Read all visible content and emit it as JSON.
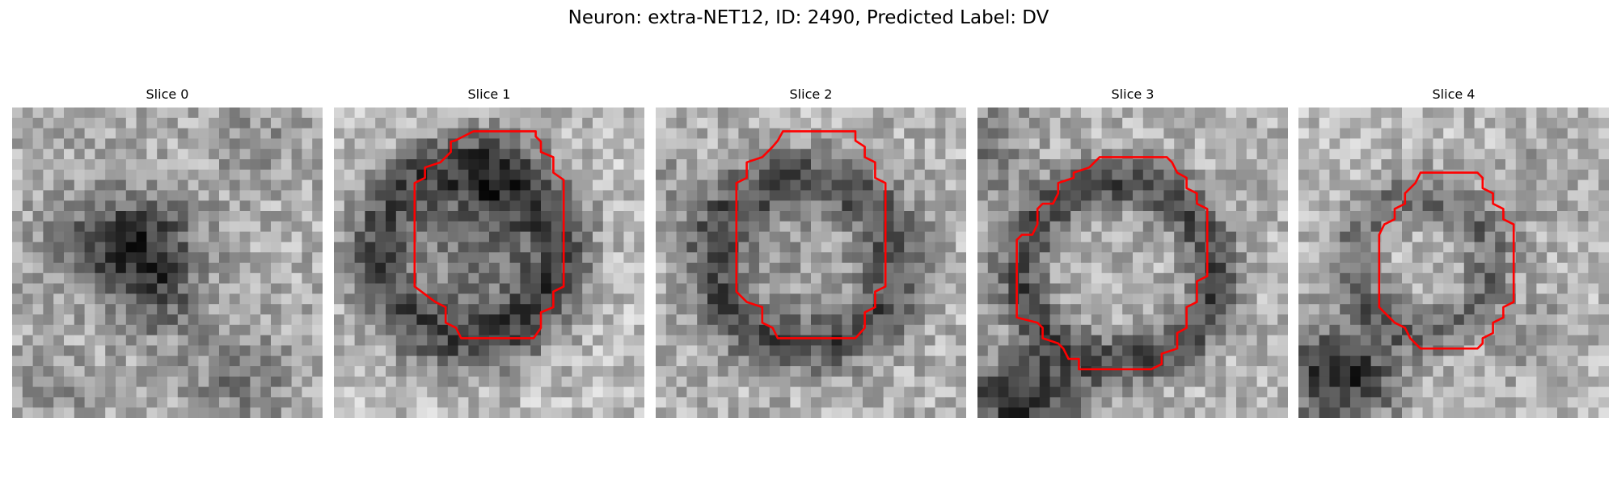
{
  "figure": {
    "title": "Neuron: extra-NET12, ID: 2490, Predicted Label: DV"
  },
  "slices": [
    {
      "title": "Slice 0",
      "contour": false
    },
    {
      "title": "Slice 1",
      "contour": true
    },
    {
      "title": "Slice 2",
      "contour": true
    },
    {
      "title": "Slice 3",
      "contour": true
    },
    {
      "title": "Slice 4",
      "contour": true
    }
  ],
  "colors": {
    "contour": "#ff0000",
    "colormap": "gray"
  }
}
